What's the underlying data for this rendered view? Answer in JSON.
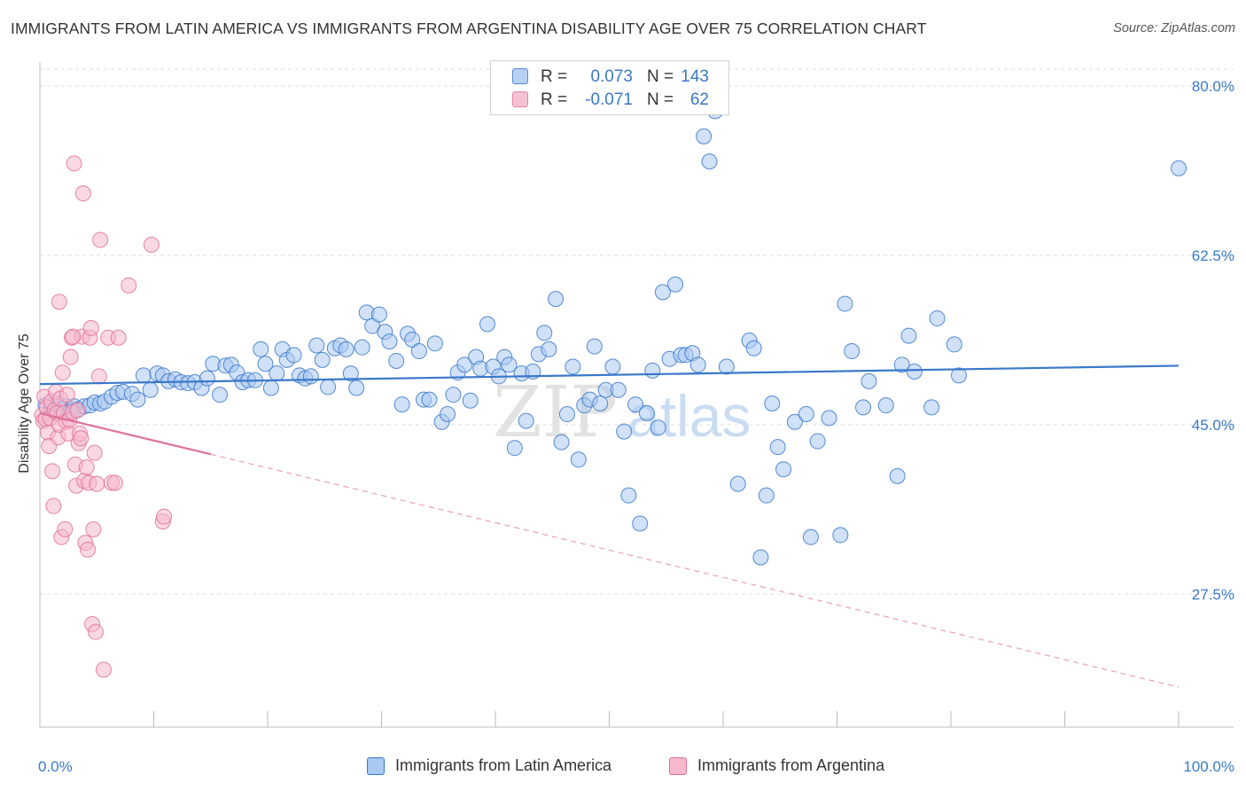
{
  "title": "IMMIGRANTS FROM LATIN AMERICA VS IMMIGRANTS FROM ARGENTINA DISABILITY AGE OVER 75 CORRELATION CHART",
  "source": "Source: ZipAtlas.com",
  "watermark": {
    "zip": "ZIP",
    "atlas": "atlas"
  },
  "colors": {
    "blue": "#3a78c9",
    "blue_fill": "#a9c8f2",
    "pink": "#e0709a",
    "pink_fill": "#f5b8cc",
    "grid": "#dddddd",
    "axis": "#bbbbbb"
  },
  "legend": {
    "rows": [
      {
        "r_label": "R =",
        "r_value": "0.073",
        "n_label": "N =",
        "n_value": "143"
      },
      {
        "r_label": "R =",
        "r_value": "-0.071",
        "n_label": "N =",
        "n_value": "62"
      }
    ]
  },
  "chart_data": {
    "type": "scatter",
    "title": "IMMIGRANTS FROM LATIN AMERICA VS IMMIGRANTS FROM ARGENTINA DISABILITY AGE OVER 75 CORRELATION CHART",
    "xlabel": "",
    "ylabel": "Disability Age Over 75",
    "xlim": [
      0,
      100
    ],
    "ylim": [
      14,
      82
    ],
    "x_tick_labels": [
      "0.0%",
      "100.0%"
    ],
    "y_ticks": [
      80.0,
      62.5,
      45.0,
      27.5
    ],
    "y_tick_labels": [
      "80.0%",
      "62.5%",
      "45.0%",
      "27.5%"
    ],
    "grid": true,
    "legend_position": "top-center",
    "series": [
      {
        "name": "Immigrants from Latin America",
        "color": "#3a78c9",
        "r": 0.073,
        "n": 143,
        "trend": {
          "x0": 0,
          "y0": 49.2,
          "x1": 100,
          "y1": 51.1,
          "dashed_from": null
        },
        "points": [
          [
            0.5,
            47.0
          ],
          [
            1.0,
            46.8
          ],
          [
            1.3,
            46.3
          ],
          [
            1.6,
            47.2
          ],
          [
            1.9,
            46.5
          ],
          [
            2.3,
            46.9
          ],
          [
            2.7,
            46.4
          ],
          [
            3.0,
            46.9
          ],
          [
            3.4,
            46.6
          ],
          [
            3.9,
            46.9
          ],
          [
            4.4,
            47.0
          ],
          [
            4.8,
            47.3
          ],
          [
            5.3,
            47.2
          ],
          [
            5.7,
            47.4
          ],
          [
            6.3,
            47.9
          ],
          [
            6.8,
            48.3
          ],
          [
            7.3,
            48.4
          ],
          [
            8.1,
            48.2
          ],
          [
            8.6,
            47.6
          ],
          [
            9.1,
            50.1
          ],
          [
            9.7,
            48.6
          ],
          [
            10.3,
            50.3
          ],
          [
            10.8,
            50.1
          ],
          [
            11.3,
            49.5
          ],
          [
            11.9,
            49.7
          ],
          [
            12.4,
            49.4
          ],
          [
            13.0,
            49.3
          ],
          [
            13.6,
            49.4
          ],
          [
            14.2,
            48.8
          ],
          [
            14.7,
            49.8
          ],
          [
            15.2,
            51.3
          ],
          [
            15.8,
            48.1
          ],
          [
            16.3,
            51.1
          ],
          [
            16.8,
            51.2
          ],
          [
            17.3,
            50.4
          ],
          [
            17.8,
            49.4
          ],
          [
            18.3,
            49.6
          ],
          [
            18.9,
            49.6
          ],
          [
            19.4,
            52.8
          ],
          [
            19.8,
            51.3
          ],
          [
            20.3,
            48.8
          ],
          [
            20.8,
            50.3
          ],
          [
            21.3,
            52.8
          ],
          [
            21.7,
            51.7
          ],
          [
            22.3,
            52.2
          ],
          [
            22.8,
            50.1
          ],
          [
            23.3,
            49.8
          ],
          [
            23.8,
            50.0
          ],
          [
            24.3,
            53.2
          ],
          [
            24.8,
            51.7
          ],
          [
            25.3,
            48.9
          ],
          [
            25.9,
            52.9
          ],
          [
            26.4,
            53.2
          ],
          [
            26.9,
            52.8
          ],
          [
            27.3,
            50.3
          ],
          [
            27.8,
            48.8
          ],
          [
            28.3,
            53.0
          ],
          [
            28.7,
            56.6
          ],
          [
            29.2,
            55.2
          ],
          [
            29.8,
            56.4
          ],
          [
            30.3,
            54.6
          ],
          [
            30.7,
            53.6
          ],
          [
            31.3,
            51.6
          ],
          [
            31.8,
            47.1
          ],
          [
            32.3,
            54.4
          ],
          [
            32.7,
            53.8
          ],
          [
            33.3,
            52.6
          ],
          [
            33.7,
            47.6
          ],
          [
            34.2,
            47.6
          ],
          [
            34.7,
            53.4
          ],
          [
            35.3,
            45.3
          ],
          [
            35.8,
            46.1
          ],
          [
            36.3,
            48.1
          ],
          [
            36.7,
            50.4
          ],
          [
            37.3,
            51.2
          ],
          [
            37.8,
            47.5
          ],
          [
            38.3,
            52.0
          ],
          [
            38.7,
            50.8
          ],
          [
            39.3,
            55.4
          ],
          [
            39.8,
            51.0
          ],
          [
            40.3,
            50.0
          ],
          [
            40.8,
            52.0
          ],
          [
            41.2,
            51.2
          ],
          [
            41.7,
            42.6
          ],
          [
            42.3,
            50.3
          ],
          [
            42.7,
            45.4
          ],
          [
            43.3,
            50.5
          ],
          [
            43.8,
            52.3
          ],
          [
            44.3,
            54.5
          ],
          [
            44.7,
            52.8
          ],
          [
            45.3,
            58.0
          ],
          [
            45.8,
            43.2
          ],
          [
            46.3,
            46.1
          ],
          [
            46.8,
            51.0
          ],
          [
            47.3,
            41.4
          ],
          [
            47.8,
            47.0
          ],
          [
            48.3,
            47.6
          ],
          [
            48.7,
            53.1
          ],
          [
            49.2,
            47.2
          ],
          [
            49.7,
            48.6
          ],
          [
            50.3,
            51.0
          ],
          [
            50.8,
            48.6
          ],
          [
            51.3,
            44.3
          ],
          [
            51.7,
            37.7
          ],
          [
            52.3,
            47.1
          ],
          [
            52.7,
            34.8
          ],
          [
            53.3,
            46.2
          ],
          [
            53.8,
            50.6
          ],
          [
            54.3,
            44.7
          ],
          [
            54.7,
            58.7
          ],
          [
            55.3,
            51.8
          ],
          [
            55.8,
            59.5
          ],
          [
            56.3,
            52.2
          ],
          [
            56.7,
            52.2
          ],
          [
            57.3,
            52.4
          ],
          [
            57.8,
            51.2
          ],
          [
            58.3,
            74.8
          ],
          [
            58.8,
            72.2
          ],
          [
            59.3,
            77.4
          ],
          [
            60.3,
            51.0
          ],
          [
            61.3,
            38.9
          ],
          [
            62.3,
            53.7
          ],
          [
            62.7,
            52.9
          ],
          [
            63.3,
            31.3
          ],
          [
            63.8,
            37.7
          ],
          [
            64.3,
            47.2
          ],
          [
            64.8,
            42.7
          ],
          [
            65.3,
            40.4
          ],
          [
            66.3,
            45.3
          ],
          [
            67.3,
            46.1
          ],
          [
            67.7,
            33.4
          ],
          [
            68.3,
            43.3
          ],
          [
            69.3,
            45.7
          ],
          [
            70.3,
            33.6
          ],
          [
            70.7,
            57.5
          ],
          [
            71.3,
            52.6
          ],
          [
            72.3,
            46.8
          ],
          [
            72.8,
            49.5
          ],
          [
            74.3,
            47.0
          ],
          [
            75.3,
            39.7
          ],
          [
            75.7,
            51.2
          ],
          [
            76.3,
            54.2
          ],
          [
            76.8,
            50.5
          ],
          [
            78.3,
            46.8
          ],
          [
            78.8,
            56.0
          ],
          [
            80.3,
            53.3
          ],
          [
            80.7,
            50.1
          ],
          [
            100.0,
            71.5
          ]
        ]
      },
      {
        "name": "Immigrants from Argentina",
        "color": "#e0709a",
        "r": -0.071,
        "n": 62,
        "trend": {
          "x0": 0,
          "y0": 46.2,
          "x1": 100,
          "y1": 17.9,
          "solid_until_x": 15
        },
        "points": [
          [
            0.2,
            46.0
          ],
          [
            0.3,
            45.4
          ],
          [
            0.4,
            47.9
          ],
          [
            0.5,
            45.6
          ],
          [
            0.6,
            46.8
          ],
          [
            0.7,
            44.2
          ],
          [
            0.8,
            42.8
          ],
          [
            0.9,
            45.7
          ],
          [
            1.0,
            47.4
          ],
          [
            1.1,
            40.2
          ],
          [
            1.2,
            36.6
          ],
          [
            1.3,
            46.5
          ],
          [
            1.4,
            48.4
          ],
          [
            1.5,
            46.2
          ],
          [
            1.6,
            43.7
          ],
          [
            1.7,
            45.0
          ],
          [
            1.8,
            47.7
          ],
          [
            1.9,
            33.4
          ],
          [
            2.0,
            50.4
          ],
          [
            2.1,
            46.2
          ],
          [
            2.2,
            34.2
          ],
          [
            2.3,
            45.3
          ],
          [
            2.4,
            48.1
          ],
          [
            2.5,
            44.1
          ],
          [
            2.6,
            45.5
          ],
          [
            2.7,
            52.0
          ],
          [
            2.8,
            54.0
          ],
          [
            2.9,
            46.3
          ],
          [
            3.0,
            72.0
          ],
          [
            3.1,
            40.9
          ],
          [
            3.2,
            38.7
          ],
          [
            3.3,
            46.5
          ],
          [
            3.4,
            43.1
          ],
          [
            3.5,
            44.1
          ],
          [
            3.6,
            43.6
          ],
          [
            3.7,
            54.1
          ],
          [
            3.8,
            68.9
          ],
          [
            3.9,
            39.2
          ],
          [
            4.0,
            32.8
          ],
          [
            4.1,
            40.6
          ],
          [
            4.2,
            32.1
          ],
          [
            4.3,
            39.0
          ],
          [
            4.4,
            54.0
          ],
          [
            4.5,
            55.0
          ],
          [
            4.6,
            24.4
          ],
          [
            4.7,
            34.2
          ],
          [
            4.8,
            42.1
          ],
          [
            4.9,
            23.6
          ],
          [
            5.0,
            38.9
          ],
          [
            5.2,
            50.0
          ],
          [
            5.3,
            64.1
          ],
          [
            5.6,
            19.7
          ],
          [
            6.0,
            54.0
          ],
          [
            6.3,
            39.0
          ],
          [
            6.6,
            39.0
          ],
          [
            6.9,
            54.0
          ],
          [
            7.8,
            59.4
          ],
          [
            9.8,
            63.6
          ],
          [
            10.8,
            35.0
          ],
          [
            10.9,
            35.5
          ],
          [
            1.7,
            57.7
          ],
          [
            2.9,
            54.1
          ]
        ]
      }
    ]
  },
  "bottom_legend": {
    "items": [
      {
        "label": "Immigrants from Latin America"
      },
      {
        "label": "Immigrants from Argentina"
      }
    ]
  }
}
